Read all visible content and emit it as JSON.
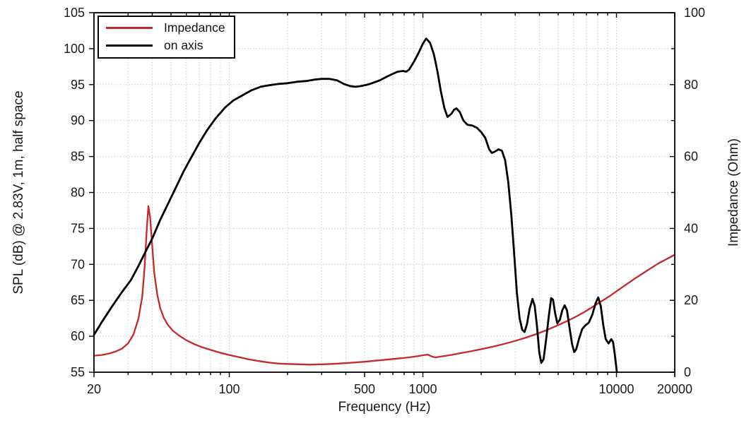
{
  "colors": {
    "spl_curve": "#000000",
    "impedance_curve": "#c5282d",
    "grid": "#cccccc",
    "axis": "#000000",
    "background": "#ffffff"
  },
  "chart_data": {
    "type": "line",
    "title": "",
    "xlabel": "Frequency (Hz)",
    "ylabel_left": "SPL (dB) @ 2.83V, 1m, half space",
    "ylabel_right": "Impedance (Ohm)",
    "x_scale": "log",
    "xlim": [
      20,
      20000
    ],
    "ylim_left": [
      55,
      105
    ],
    "ylim_right": [
      0,
      100
    ],
    "x_ticks_labeled": [
      20,
      100,
      500,
      1000,
      10000,
      20000
    ],
    "y_ticks_left": [
      55,
      60,
      65,
      70,
      75,
      80,
      85,
      90,
      95,
      100,
      105
    ],
    "y_ticks_right_labeled": [
      0,
      20,
      40,
      60,
      80,
      100
    ],
    "y_ticks_right_minor_step": 10,
    "grid": true,
    "legend_position": "top-left",
    "series": [
      {
        "name": "Impedance",
        "axis": "right",
        "color": "#c5282d",
        "points": [
          [
            20,
            4.6
          ],
          [
            22,
            4.8
          ],
          [
            24,
            5.2
          ],
          [
            26,
            5.8
          ],
          [
            28,
            6.6
          ],
          [
            30,
            8.0
          ],
          [
            32,
            10.5
          ],
          [
            34,
            15.0
          ],
          [
            35.5,
            21.0
          ],
          [
            36.5,
            29.0
          ],
          [
            37.5,
            40.0
          ],
          [
            38.2,
            46.2
          ],
          [
            39,
            43.0
          ],
          [
            40,
            35.0
          ],
          [
            41,
            27.5
          ],
          [
            42.5,
            21.5
          ],
          [
            44,
            17.8
          ],
          [
            46,
            15.0
          ],
          [
            48,
            13.3
          ],
          [
            51,
            11.6
          ],
          [
            55,
            10.2
          ],
          [
            60,
            8.9
          ],
          [
            66,
            7.8
          ],
          [
            72,
            7.0
          ],
          [
            80,
            6.2
          ],
          [
            90,
            5.4
          ],
          [
            100,
            4.8
          ],
          [
            112,
            4.2
          ],
          [
            126,
            3.6
          ],
          [
            142,
            3.1
          ],
          [
            160,
            2.7
          ],
          [
            180,
            2.4
          ],
          [
            200,
            2.3
          ],
          [
            230,
            2.2
          ],
          [
            260,
            2.1
          ],
          [
            300,
            2.2
          ],
          [
            340,
            2.3
          ],
          [
            390,
            2.5
          ],
          [
            440,
            2.7
          ],
          [
            500,
            2.9
          ],
          [
            570,
            3.2
          ],
          [
            650,
            3.5
          ],
          [
            740,
            3.8
          ],
          [
            840,
            4.1
          ],
          [
            950,
            4.5
          ],
          [
            1020,
            4.8
          ],
          [
            1060,
            4.9
          ],
          [
            1110,
            4.4
          ],
          [
            1160,
            4.1
          ],
          [
            1250,
            4.4
          ],
          [
            1400,
            4.8
          ],
          [
            1600,
            5.4
          ],
          [
            1800,
            5.9
          ],
          [
            2000,
            6.4
          ],
          [
            2300,
            7.1
          ],
          [
            2600,
            7.8
          ],
          [
            3000,
            8.7
          ],
          [
            3400,
            9.6
          ],
          [
            3900,
            10.7
          ],
          [
            4400,
            11.8
          ],
          [
            5000,
            13.1
          ],
          [
            5600,
            14.3
          ],
          [
            6200,
            15.5
          ],
          [
            6900,
            16.9
          ],
          [
            7600,
            18.3
          ],
          [
            8400,
            19.8
          ],
          [
            9300,
            21.3
          ],
          [
            10300,
            23.0
          ],
          [
            11300,
            24.5
          ],
          [
            12400,
            26.0
          ],
          [
            13700,
            27.5
          ],
          [
            15000,
            28.9
          ],
          [
            16500,
            30.3
          ],
          [
            18200,
            31.5
          ],
          [
            20000,
            32.7
          ]
        ]
      },
      {
        "name": "on axis",
        "axis": "left",
        "color": "#000000",
        "points": [
          [
            20,
            60.2
          ],
          [
            22,
            62.0
          ],
          [
            25,
            64.3
          ],
          [
            28,
            66.2
          ],
          [
            31,
            67.8
          ],
          [
            34,
            69.8
          ],
          [
            37,
            71.8
          ],
          [
            40,
            73.6
          ],
          [
            44,
            76.2
          ],
          [
            48,
            78.3
          ],
          [
            53,
            80.7
          ],
          [
            58,
            82.9
          ],
          [
            64,
            85.0
          ],
          [
            70,
            86.9
          ],
          [
            77,
            88.7
          ],
          [
            85,
            90.3
          ],
          [
            95,
            91.8
          ],
          [
            105,
            92.8
          ],
          [
            115,
            93.4
          ],
          [
            130,
            94.2
          ],
          [
            145,
            94.7
          ],
          [
            160,
            94.9
          ],
          [
            180,
            95.1
          ],
          [
            200,
            95.2
          ],
          [
            225,
            95.4
          ],
          [
            250,
            95.5
          ],
          [
            275,
            95.7
          ],
          [
            300,
            95.8
          ],
          [
            330,
            95.8
          ],
          [
            360,
            95.6
          ],
          [
            390,
            95.1
          ],
          [
            420,
            94.8
          ],
          [
            450,
            94.7
          ],
          [
            480,
            94.8
          ],
          [
            520,
            95.0
          ],
          [
            560,
            95.3
          ],
          [
            600,
            95.6
          ],
          [
            650,
            96.1
          ],
          [
            700,
            96.5
          ],
          [
            740,
            96.8
          ],
          [
            790,
            96.9
          ],
          [
            820,
            96.8
          ],
          [
            850,
            97.1
          ],
          [
            900,
            98.2
          ],
          [
            950,
            99.4
          ],
          [
            1000,
            100.7
          ],
          [
            1040,
            101.4
          ],
          [
            1090,
            100.8
          ],
          [
            1140,
            99.2
          ],
          [
            1190,
            96.8
          ],
          [
            1240,
            94.0
          ],
          [
            1290,
            91.8
          ],
          [
            1340,
            90.5
          ],
          [
            1400,
            90.9
          ],
          [
            1450,
            91.5
          ],
          [
            1490,
            91.7
          ],
          [
            1550,
            91.2
          ],
          [
            1620,
            90.0
          ],
          [
            1700,
            89.4
          ],
          [
            1800,
            89.3
          ],
          [
            1900,
            89.0
          ],
          [
            2000,
            88.4
          ],
          [
            2100,
            87.6
          ],
          [
            2200,
            86.0
          ],
          [
            2270,
            85.5
          ],
          [
            2360,
            85.7
          ],
          [
            2460,
            86.0
          ],
          [
            2560,
            85.8
          ],
          [
            2660,
            84.5
          ],
          [
            2760,
            81.5
          ],
          [
            2860,
            77.0
          ],
          [
            2960,
            71.5
          ],
          [
            3060,
            66.0
          ],
          [
            3160,
            62.5
          ],
          [
            3260,
            60.9
          ],
          [
            3350,
            60.6
          ],
          [
            3450,
            61.7
          ],
          [
            3560,
            63.8
          ],
          [
            3680,
            65.2
          ],
          [
            3780,
            64.2
          ],
          [
            3880,
            61.5
          ],
          [
            3990,
            57.8
          ],
          [
            4090,
            56.3
          ],
          [
            4200,
            56.8
          ],
          [
            4330,
            59.5
          ],
          [
            4480,
            63.0
          ],
          [
            4600,
            65.3
          ],
          [
            4700,
            65.1
          ],
          [
            4820,
            63.2
          ],
          [
            4950,
            61.8
          ],
          [
            5100,
            62.3
          ],
          [
            5250,
            63.6
          ],
          [
            5400,
            64.3
          ],
          [
            5550,
            63.6
          ],
          [
            5700,
            61.5
          ],
          [
            5900,
            58.9
          ],
          [
            6050,
            57.8
          ],
          [
            6200,
            58.2
          ],
          [
            6400,
            59.6
          ],
          [
            6650,
            61.0
          ],
          [
            6900,
            61.5
          ],
          [
            7200,
            61.9
          ],
          [
            7500,
            63.0
          ],
          [
            7800,
            64.6
          ],
          [
            8050,
            65.4
          ],
          [
            8300,
            64.2
          ],
          [
            8550,
            61.5
          ],
          [
            8800,
            59.6
          ],
          [
            9100,
            59.0
          ],
          [
            9400,
            59.6
          ],
          [
            9600,
            59.2
          ],
          [
            9800,
            57.5
          ],
          [
            10050,
            55.0
          ]
        ]
      }
    ]
  }
}
